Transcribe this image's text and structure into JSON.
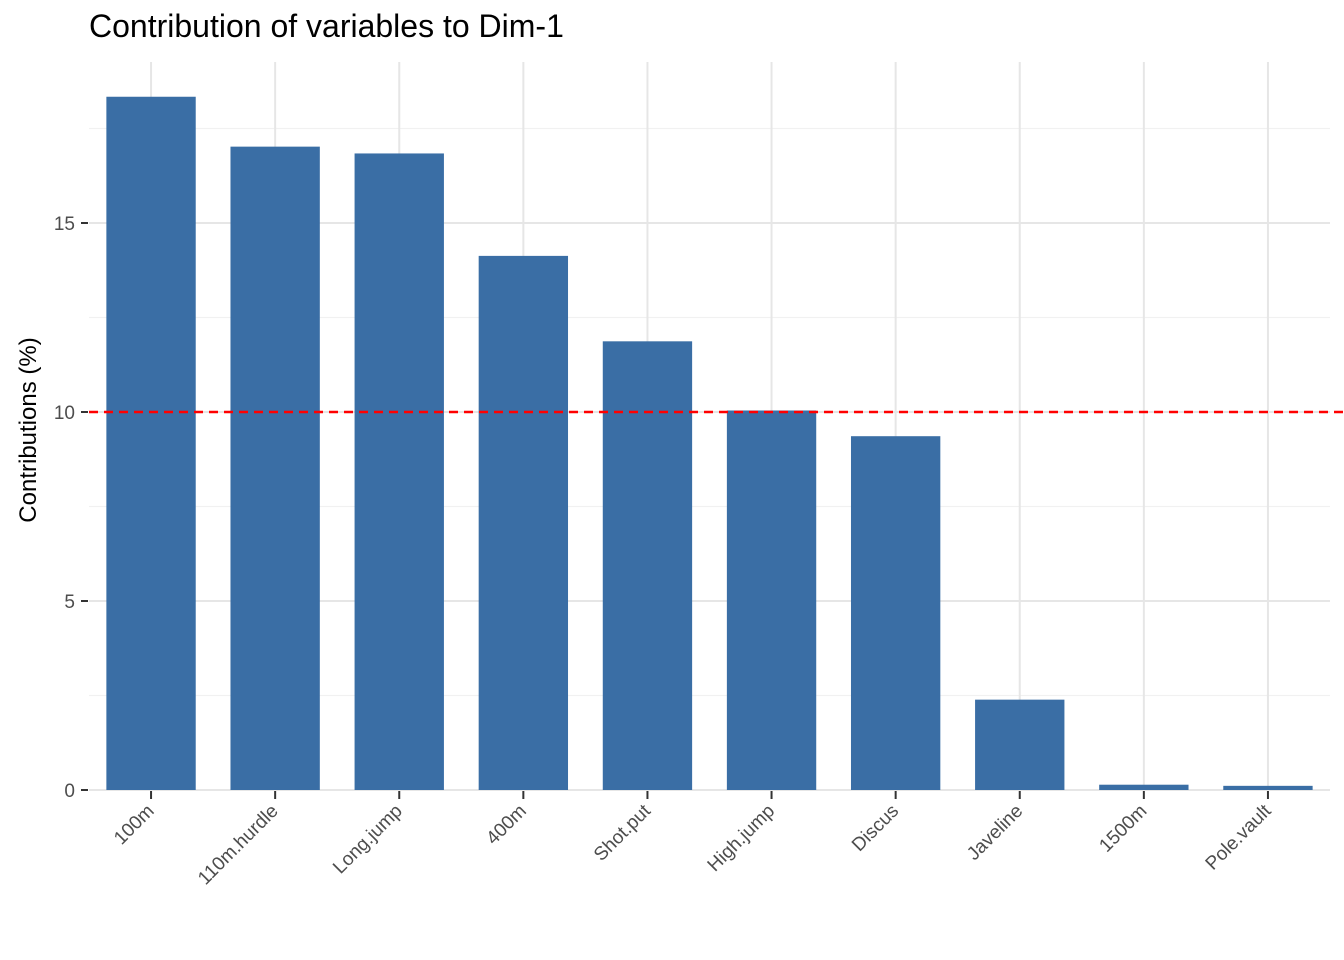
{
  "chart_data": {
    "type": "bar",
    "title": "Contribution of variables to Dim-1",
    "xlabel": "",
    "ylabel": "Contributions (%)",
    "categories": [
      "100m",
      "110m.hurdle",
      "Long.jump",
      "400m",
      "Shot.put",
      "High.jump",
      "Discus",
      "Javeline",
      "1500m",
      "Pole.vault"
    ],
    "values": [
      18.34,
      17.02,
      16.84,
      14.13,
      11.87,
      10.04,
      9.36,
      2.39,
      0.14,
      0.11
    ],
    "ylim": [
      0,
      19
    ],
    "yticks": [
      0,
      5,
      10,
      15
    ],
    "reference_line": {
      "value": 10,
      "color": "#ff0000",
      "style": "dashed"
    },
    "bar_color": "#3a6ea5",
    "grid": true
  }
}
